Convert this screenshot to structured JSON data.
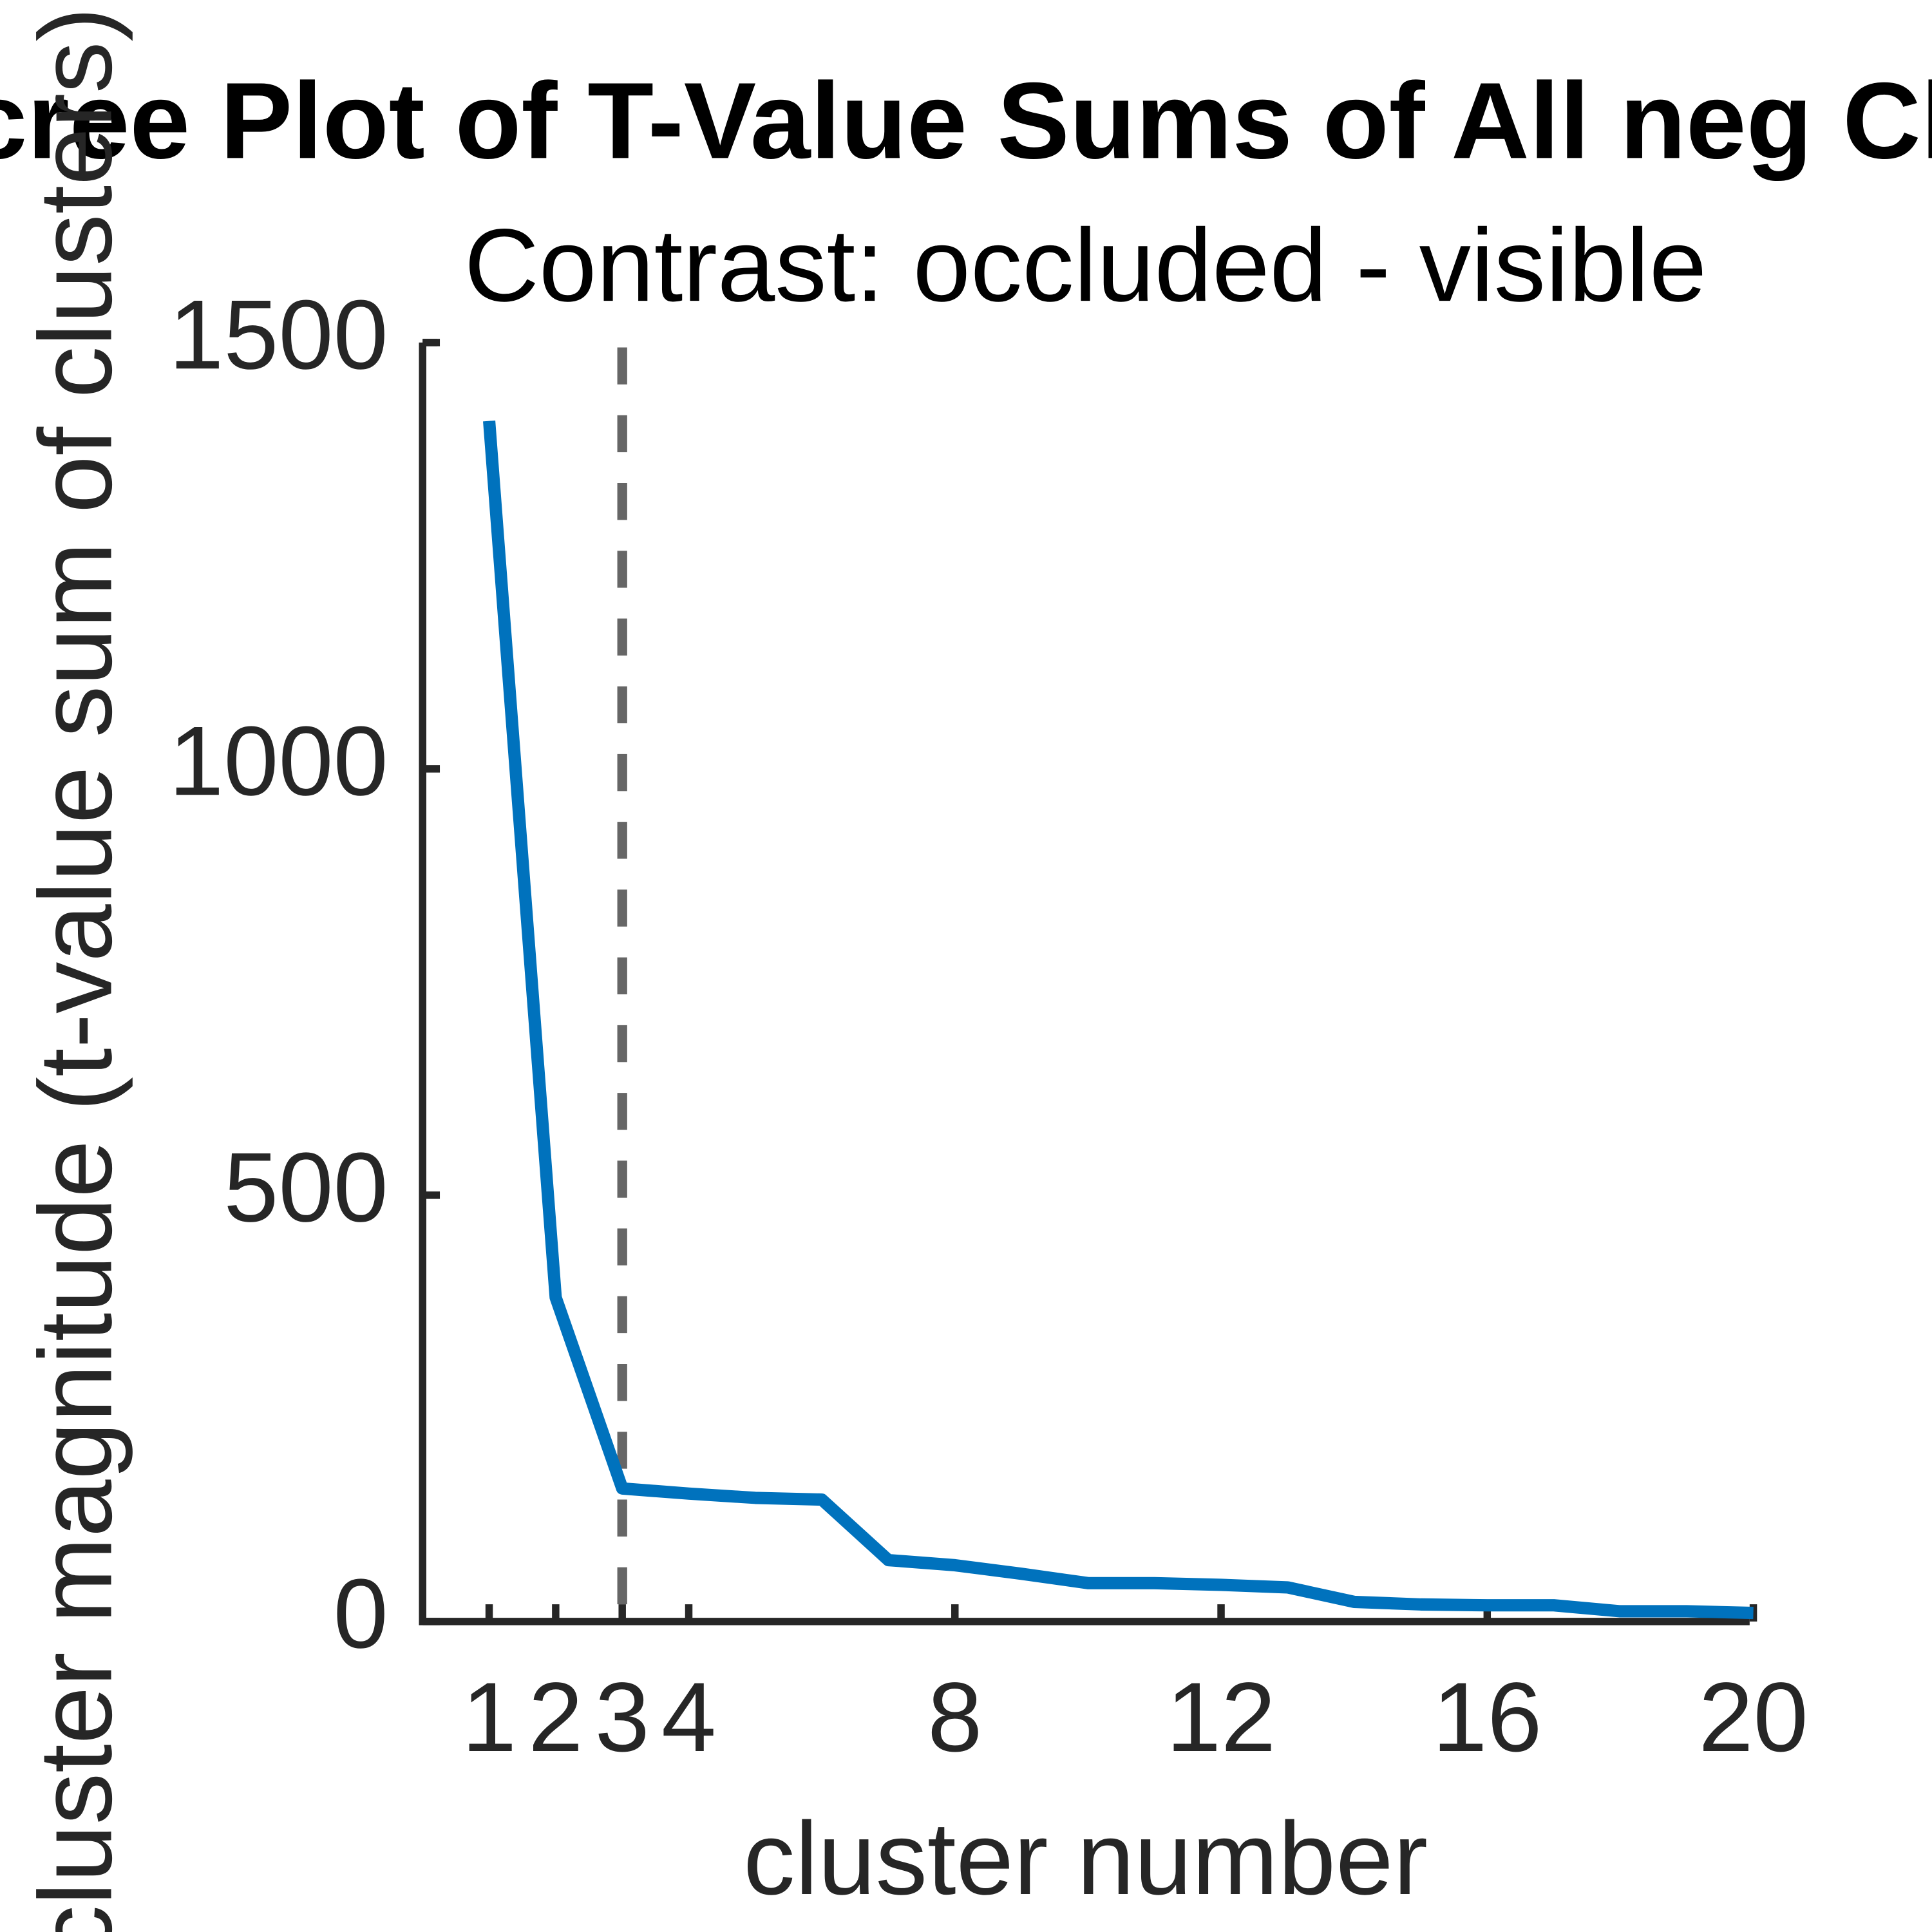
{
  "chart_data": {
    "type": "line",
    "title": "Scree Plot of T-Value Sums of All neg Clusters",
    "subtitle": "Contrast: occluded - visible",
    "x_label": "cluster number",
    "y_label": "cluster magnitude (t-value sum of clusters)",
    "x": [
      1,
      2,
      3,
      4,
      5,
      6,
      7,
      8,
      9,
      10,
      11,
      12,
      13,
      14,
      15,
      16,
      17,
      18,
      19,
      20
    ],
    "series": [
      {
        "color": "#0072bd",
        "values": [
          1408,
          380,
          156,
          150,
          145,
          143,
          72,
          66,
          56,
          45,
          45,
          43,
          40,
          23,
          20,
          19,
          19,
          12,
          12,
          10
        ]
      }
    ],
    "xlim": [
      0,
      20
    ],
    "xticks": [
      1,
      2,
      3,
      4,
      8,
      12,
      16,
      20
    ],
    "ylim": [
      0,
      1500
    ],
    "yticks": [
      0,
      500,
      1000,
      1500
    ],
    "vline_x": 3,
    "vline_color": "#666666",
    "grid": false
  }
}
